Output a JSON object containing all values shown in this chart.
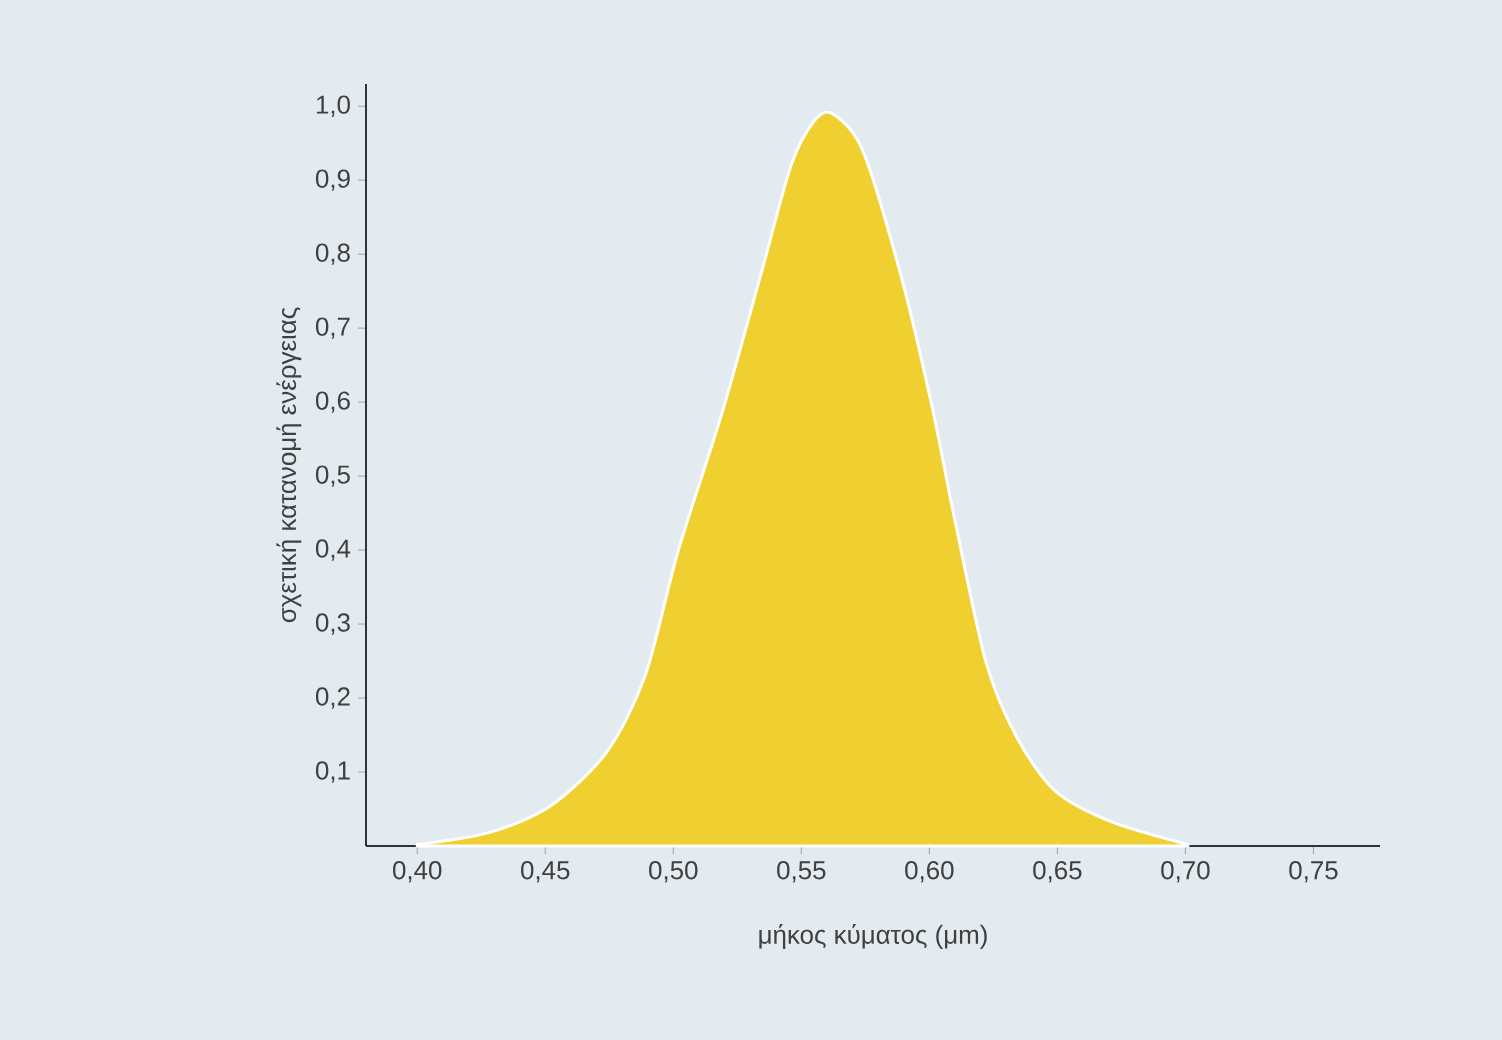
{
  "chart_data": {
    "type": "area",
    "xlabel": "μήκος κύματος (μm)",
    "ylabel": "σχετική κατανομή ενέργειας",
    "x": [
      0.4,
      0.428,
      0.452,
      0.474,
      0.489,
      0.502,
      0.519,
      0.534,
      0.546,
      0.555,
      0.562,
      0.574,
      0.589,
      0.601,
      0.61,
      0.622,
      0.634,
      0.649,
      0.671,
      0.701
    ],
    "series": [
      {
        "color": "#f0d030",
        "values": [
          0.002,
          0.018,
          0.054,
          0.127,
          0.23,
          0.4,
          0.585,
          0.77,
          0.92,
          0.98,
          0.99,
          0.94,
          0.77,
          0.595,
          0.44,
          0.25,
          0.148,
          0.075,
          0.033,
          0.002
        ]
      }
    ],
    "xlim": [
      0.38,
      0.776
    ],
    "ylim": [
      0,
      1.03
    ],
    "xticks": [
      {
        "value": 0.4,
        "label": "0,40"
      },
      {
        "value": 0.45,
        "label": "0,45"
      },
      {
        "value": 0.5,
        "label": "0,50"
      },
      {
        "value": 0.55,
        "label": "0,55"
      },
      {
        "value": 0.6,
        "label": "0,60"
      },
      {
        "value": 0.65,
        "label": "0,65"
      },
      {
        "value": 0.7,
        "label": "0,70"
      },
      {
        "value": 0.75,
        "label": "0,75"
      }
    ],
    "yticks": [
      {
        "value": 0.1,
        "label": "0,1"
      },
      {
        "value": 0.2,
        "label": "0,2"
      },
      {
        "value": 0.3,
        "label": "0,3"
      },
      {
        "value": 0.4,
        "label": "0,4"
      },
      {
        "value": 0.5,
        "label": "0,5"
      },
      {
        "value": 0.6,
        "label": "0,6"
      },
      {
        "value": 0.7,
        "label": "0,7"
      },
      {
        "value": 0.8,
        "label": "0,8"
      },
      {
        "value": 0.9,
        "label": "0,9"
      },
      {
        "value": 1.0,
        "label": "1,0"
      }
    ],
    "grid": false
  }
}
